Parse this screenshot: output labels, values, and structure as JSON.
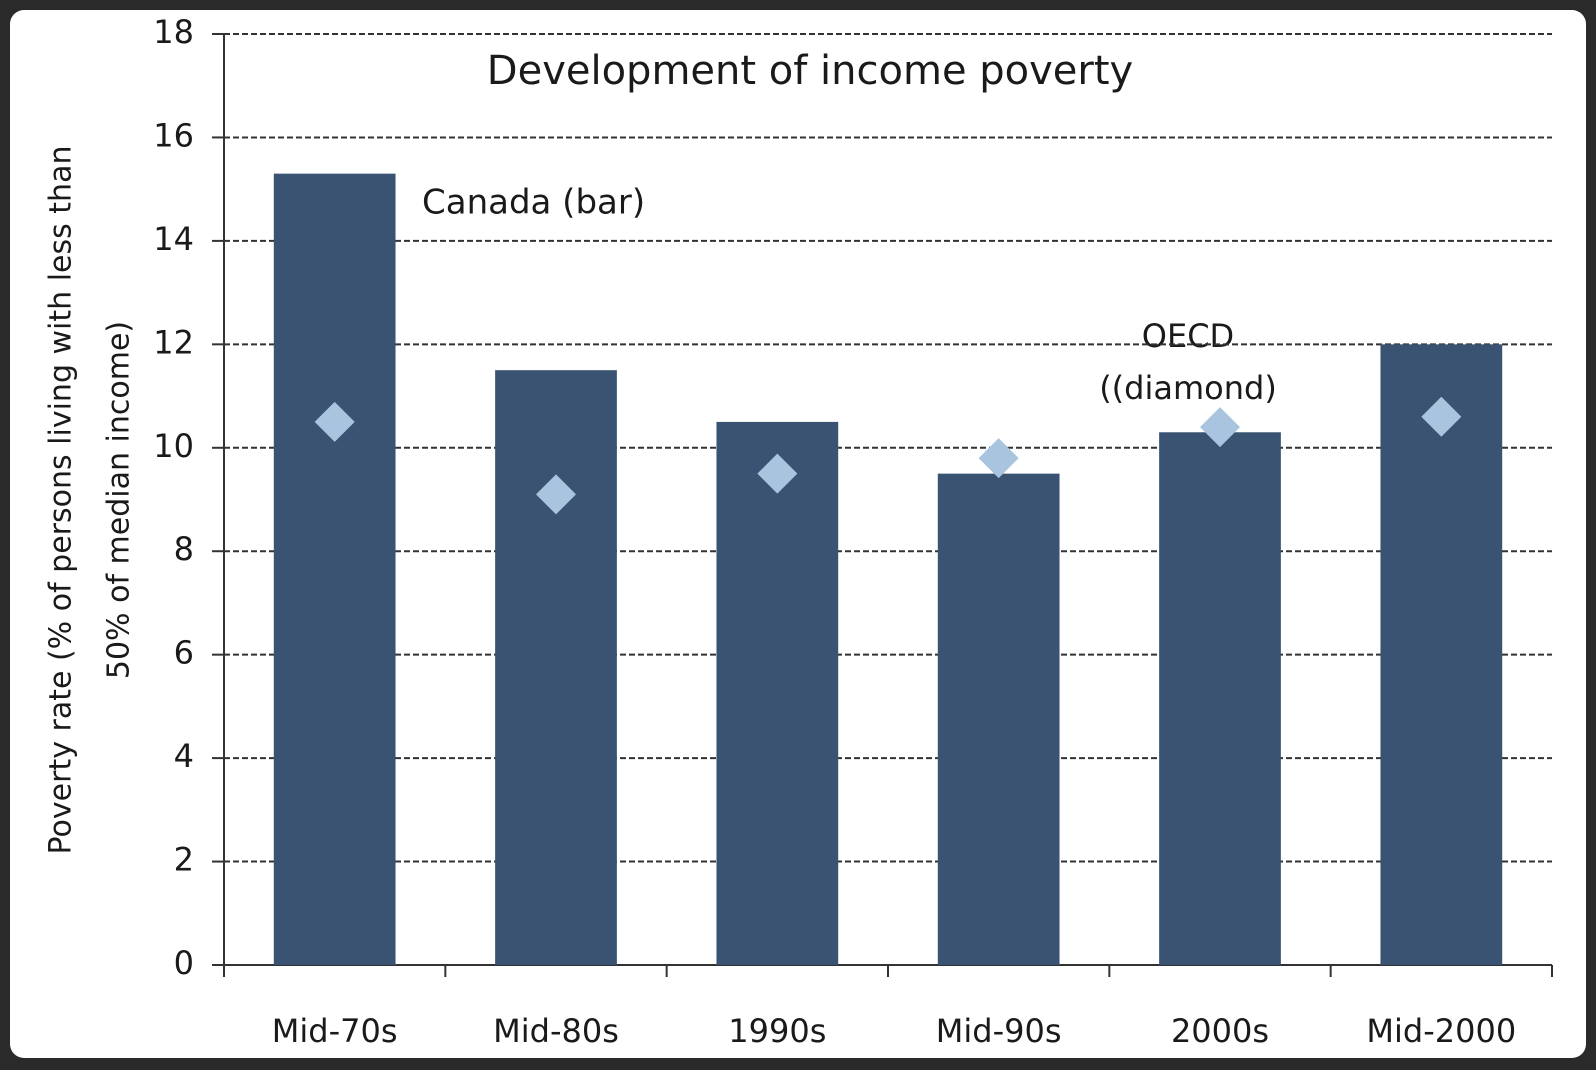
{
  "chart_data": {
    "type": "bar",
    "title": "Development of income poverty",
    "y_label": [
      "Poverty rate  (% of persons living with less than",
      "50% of median income)"
    ],
    "annotations": [
      "Canada (bar)",
      "OECD",
      "((diamond)"
    ],
    "categories": [
      "Mid-70s",
      "Mid-80s",
      "1990s",
      "Mid-90s",
      "2000s",
      "Mid-2000"
    ],
    "series": [
      {
        "color": "#3b5372",
        "values": [
          15.3,
          11.5,
          10.5,
          9.5,
          10.3,
          12.0
        ]
      },
      {
        "color": "#a9c4df",
        "marker": "diamond",
        "values": [
          10.5,
          9.1,
          9.5,
          9.8,
          10.4,
          10.6
        ]
      }
    ],
    "ylim": [
      0,
      18
    ],
    "yticks": [
      0,
      2,
      4,
      6,
      8,
      10,
      12,
      14,
      16,
      18
    ],
    "grid": true
  }
}
